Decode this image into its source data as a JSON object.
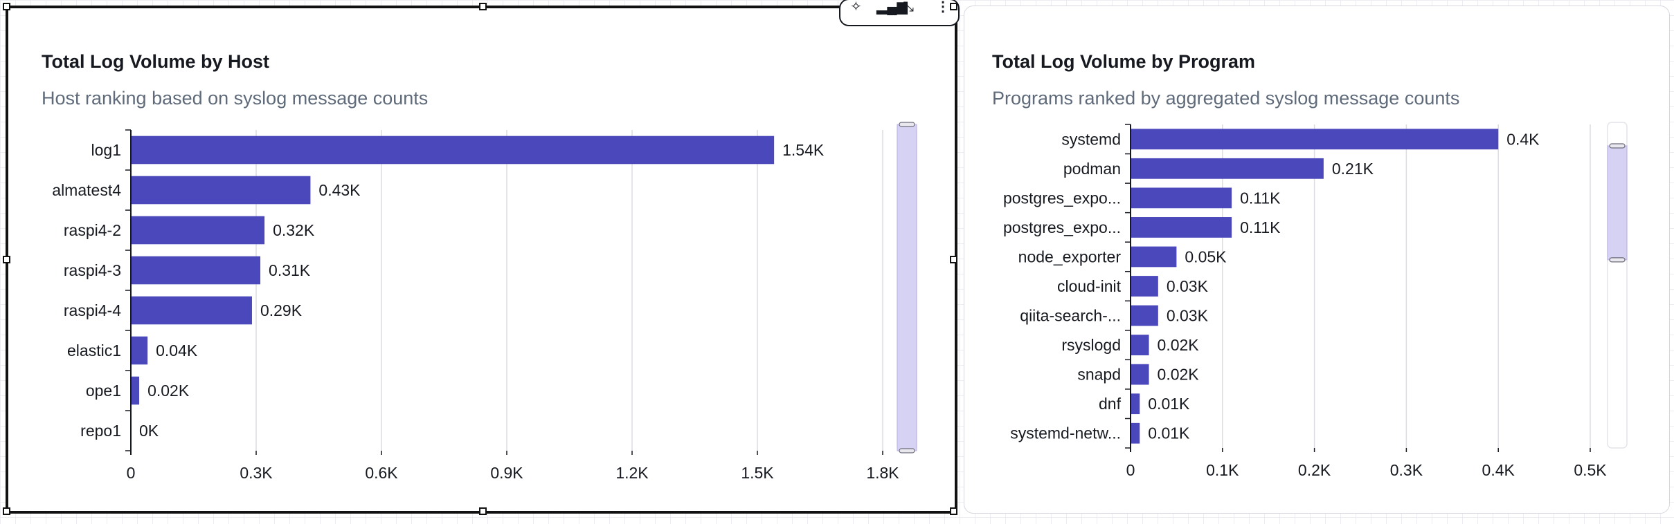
{
  "charts": {
    "host": {
      "title": "Total Log Volume by Host",
      "subtitle": "Host ranking based on syslog message counts"
    },
    "program": {
      "title": "Total Log Volume by Program",
      "subtitle": "Programs ranked by aggregated syslog message counts"
    }
  },
  "toolbar": {
    "icons": [
      "sparkle-icon",
      "chart-icon",
      "expand-icon",
      "more-options-icon"
    ]
  },
  "colors": {
    "bar": "#4b48bb",
    "gridline": "#dcdce2",
    "scrollbar_track": "#d6d2f3"
  },
  "chart_data": [
    {
      "type": "bar",
      "orientation": "horizontal",
      "title": "Total Log Volume by Host",
      "subtitle": "Host ranking based on syslog message counts",
      "categories": [
        "log1",
        "almatest4",
        "raspi4-2",
        "raspi4-3",
        "raspi4-4",
        "elastic1",
        "ope1",
        "repo1"
      ],
      "values": [
        1540,
        430,
        320,
        310,
        290,
        40,
        20,
        0
      ],
      "data_labels": [
        "1.54K",
        "0.43K",
        "0.32K",
        "0.31K",
        "0.29K",
        "0.04K",
        "0.02K",
        "0K"
      ],
      "xlim": [
        0,
        1800
      ],
      "xticks": [
        0,
        300,
        600,
        900,
        1200,
        1500,
        1800
      ],
      "xtick_labels": [
        "0",
        "0.3K",
        "0.6K",
        "0.9K",
        "1.2K",
        "1.5K",
        "1.8K"
      ],
      "grid": true,
      "scrollbar_visible_fraction": 1.0
    },
    {
      "type": "bar",
      "orientation": "horizontal",
      "title": "Total Log Volume by Program",
      "subtitle": "Programs ranked by aggregated syslog message counts",
      "categories": [
        "systemd",
        "podman",
        "postgres_expo...",
        "postgres_expo...",
        "node_exporter",
        "cloud-init",
        "qiita-search-...",
        "rsyslogd",
        "snapd",
        "dnf",
        "systemd-netw..."
      ],
      "values": [
        400,
        210,
        110,
        110,
        50,
        30,
        30,
        20,
        20,
        10,
        10
      ],
      "data_labels": [
        "0.4K",
        "0.21K",
        "0.11K",
        "0.11K",
        "0.05K",
        "0.03K",
        "0.03K",
        "0.02K",
        "0.02K",
        "0.01K",
        "0.01K"
      ],
      "xlim": [
        0,
        500
      ],
      "xticks": [
        0,
        100,
        200,
        300,
        400,
        500
      ],
      "xtick_labels": [
        "0",
        "0.1K",
        "0.2K",
        "0.3K",
        "0.4K",
        "0.5K"
      ],
      "grid": true,
      "scrollbar_visible_fraction": 0.35
    }
  ]
}
